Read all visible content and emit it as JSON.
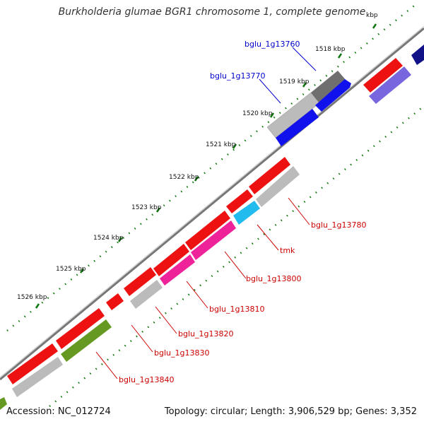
{
  "title": "Burkholderia glumae BGR1 chromosome 1, complete genome",
  "footer": {
    "accession": "Accession: NC_012724",
    "summary": "Topology: circular; Length: 3,906,529 bp; Genes: 3,352"
  },
  "ticks": [
    {
      "label": "kbp"
    },
    {
      "label": "1518 kbp"
    },
    {
      "label": "1519 kbp"
    },
    {
      "label": "1520 kbp"
    },
    {
      "label": "1521 kbp"
    },
    {
      "label": "1522 kbp"
    },
    {
      "label": "1523 kbp"
    },
    {
      "label": "1524 kbp"
    },
    {
      "label": "1525 kbp"
    },
    {
      "label": "1526 kbp"
    }
  ],
  "genes": [
    {
      "name": "bglu_1g13760",
      "color": "#0000cc"
    },
    {
      "name": "bglu_1g13770",
      "color": "#0000cc"
    },
    {
      "name": "bglu_1g13780",
      "color": "#cc0000"
    },
    {
      "name": "tmk",
      "color": "#cc0000"
    },
    {
      "name": "bglu_1g13800",
      "color": "#cc0000"
    },
    {
      "name": "bglu_1g13810",
      "color": "#cc0000"
    },
    {
      "name": "bglu_1g13820",
      "color": "#cc0000"
    },
    {
      "name": "bglu_1g13830",
      "color": "#cc0000"
    },
    {
      "name": "bglu_1g13840",
      "color": "#cc0000"
    }
  ],
  "colors": {
    "cds": "#ee1111",
    "blue": "#1111ee",
    "navy": "#111188",
    "lavender": "#7766dd",
    "magenta": "#ee2299",
    "cyan": "#22bbee",
    "olive": "#669922",
    "gray": "#bbbbbb",
    "darkgray": "#777777",
    "backbone": "#888888",
    "tick": "#117711"
  }
}
